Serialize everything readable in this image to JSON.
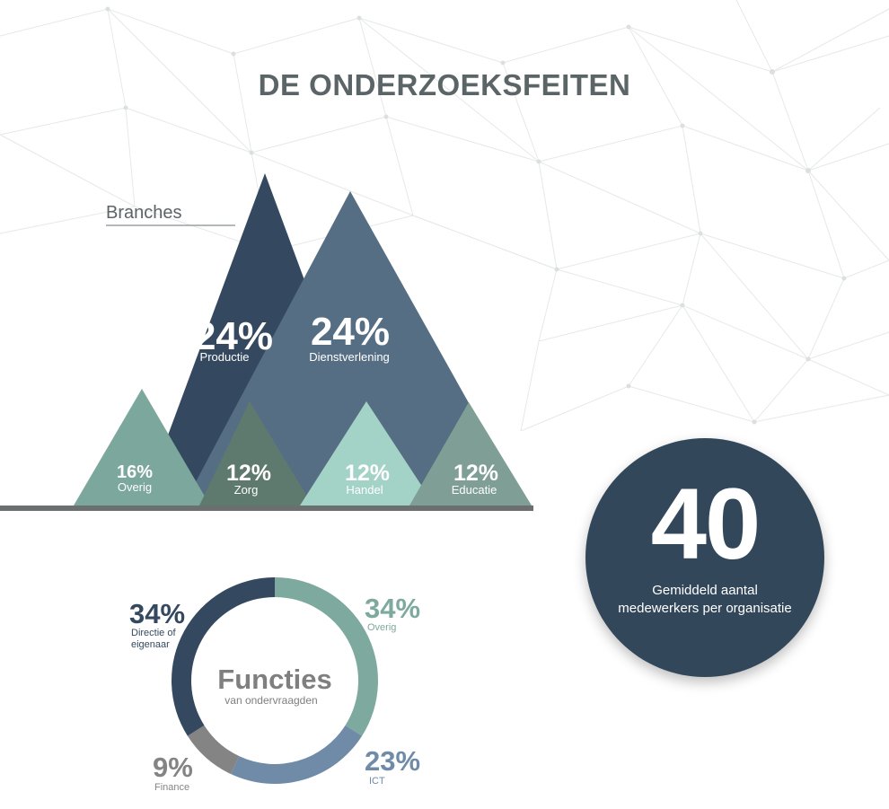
{
  "title": "DE ONDERZOEKSFEITEN",
  "branches": {
    "label": "Branches",
    "chart_data": {
      "type": "triangle-infographic",
      "title": "Branches",
      "categories": [
        "Productie",
        "Dienstverlening",
        "Overig",
        "Zorg",
        "Handel",
        "Educatie"
      ],
      "values": [
        24,
        24,
        16,
        12,
        12,
        12
      ],
      "labels": [
        "24%",
        "24%",
        "16%",
        "12%",
        "12%",
        "12%"
      ],
      "colors": [
        "#34495f",
        "#566e84",
        "#7ba79c",
        "#5e7a6e",
        "#a3d2c7",
        "#7f9f96"
      ]
    }
  },
  "functies": {
    "title": "Functies",
    "subtitle": "van ondervraagden",
    "chart_data": {
      "type": "pie",
      "title": "Functies",
      "categories": [
        "Overig",
        "ICT",
        "Finance",
        "Directie of eigenaar"
      ],
      "values": [
        34,
        23,
        9,
        34
      ],
      "labels": [
        "34%",
        "23%",
        "9%",
        "34%"
      ],
      "colors": [
        "#7ea99e",
        "#6f8ba7",
        "#848484",
        "#34495f"
      ]
    },
    "label_lines": {
      "directie": [
        "Directie of",
        "eigenaar"
      ]
    }
  },
  "medewerkers": {
    "value": "40",
    "caption_line1": "Gemiddeld aantal",
    "caption_line2": "medewerkers per organisatie"
  }
}
